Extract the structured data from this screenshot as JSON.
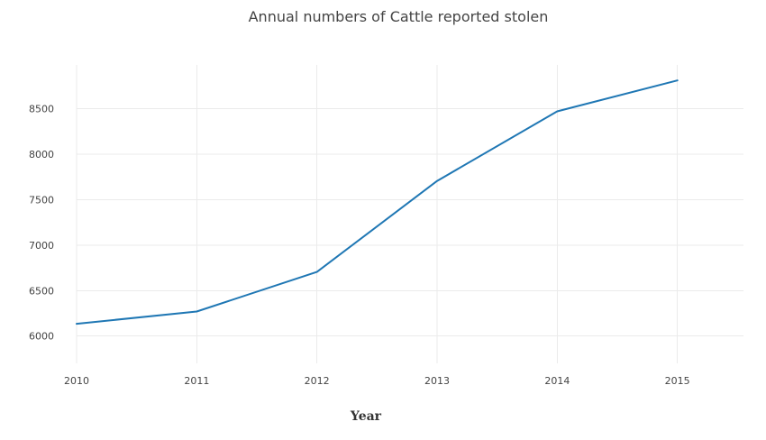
{
  "chart_data": {
    "type": "line",
    "title": "Annual numbers of Cattle reported stolen",
    "xlabel": "Year",
    "ylabel": "",
    "x": [
      2010,
      2011,
      2012,
      2013,
      2014,
      2015
    ],
    "x_ticks": [
      "2010",
      "2011",
      "2012",
      "2013",
      "2014",
      "2015"
    ],
    "y_ticks": [
      6000,
      6500,
      7000,
      7500,
      8000,
      8500
    ],
    "y_tick_labels": [
      "6000",
      "6500",
      "7000",
      "7500",
      "8000",
      "8500"
    ],
    "xlim": [
      2010,
      2015.55
    ],
    "ylim": [
      5700,
      8980
    ],
    "grid": true,
    "series": [
      {
        "color": "#1f77b4",
        "values": [
          6135,
          6270,
          6705,
          7705,
          8470,
          8810
        ]
      }
    ]
  }
}
